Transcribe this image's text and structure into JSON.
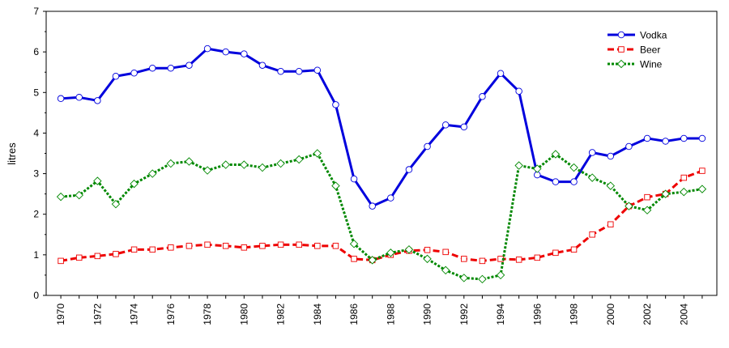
{
  "chart_data": {
    "type": "line",
    "title": "",
    "xlabel": "",
    "ylabel": "litres",
    "x": [
      1970,
      1971,
      1972,
      1973,
      1974,
      1975,
      1976,
      1977,
      1978,
      1979,
      1980,
      1981,
      1982,
      1983,
      1984,
      1985,
      1986,
      1987,
      1988,
      1989,
      1990,
      1991,
      1992,
      1993,
      1994,
      1995,
      1996,
      1997,
      1998,
      1999,
      2000,
      2001,
      2002,
      2003,
      2004,
      2005
    ],
    "xlim": [
      1969.2,
      2005.8
    ],
    "ylim": [
      0,
      7
    ],
    "y_ticks": [
      0,
      1,
      2,
      3,
      4,
      5,
      6,
      7
    ],
    "x_ticks": [
      1970,
      1972,
      1974,
      1976,
      1978,
      1980,
      1982,
      1984,
      1986,
      1988,
      1990,
      1992,
      1994,
      1996,
      1998,
      2000,
      2002,
      2004
    ],
    "grid": false,
    "legend_position": "top-right",
    "series": [
      {
        "name": "Vodka",
        "color": "#0000dd",
        "marker": "circle",
        "line_style": "solid",
        "values": [
          4.85,
          4.88,
          4.8,
          5.4,
          5.48,
          5.6,
          5.6,
          5.67,
          6.08,
          6.0,
          5.95,
          5.67,
          5.52,
          5.52,
          5.55,
          4.7,
          2.87,
          2.2,
          2.4,
          3.1,
          3.67,
          4.2,
          4.15,
          4.9,
          5.47,
          5.03,
          2.97,
          2.8,
          2.8,
          3.52,
          3.43,
          3.67,
          3.87,
          3.8,
          3.87,
          3.87
        ]
      },
      {
        "name": "Beer",
        "color": "#ee0000",
        "marker": "square",
        "line_style": "dashed",
        "values": [
          0.85,
          0.93,
          0.97,
          1.02,
          1.13,
          1.13,
          1.18,
          1.22,
          1.25,
          1.22,
          1.18,
          1.22,
          1.25,
          1.25,
          1.22,
          1.22,
          0.9,
          0.87,
          1.0,
          1.1,
          1.12,
          1.07,
          0.9,
          0.85,
          0.9,
          0.88,
          0.93,
          1.05,
          1.13,
          1.5,
          1.75,
          2.2,
          2.42,
          2.5,
          2.9,
          3.07
        ]
      },
      {
        "name": "Wine",
        "color": "#008800",
        "marker": "diamond",
        "line_style": "dotted",
        "values": [
          2.43,
          2.47,
          2.82,
          2.25,
          2.75,
          3.0,
          3.25,
          3.3,
          3.08,
          3.22,
          3.22,
          3.15,
          3.25,
          3.35,
          3.5,
          2.7,
          1.27,
          0.87,
          1.05,
          1.13,
          0.9,
          0.62,
          0.43,
          0.4,
          0.5,
          3.2,
          3.12,
          3.48,
          3.15,
          2.9,
          2.7,
          2.2,
          2.1,
          2.5,
          2.55,
          2.62
        ]
      }
    ]
  }
}
